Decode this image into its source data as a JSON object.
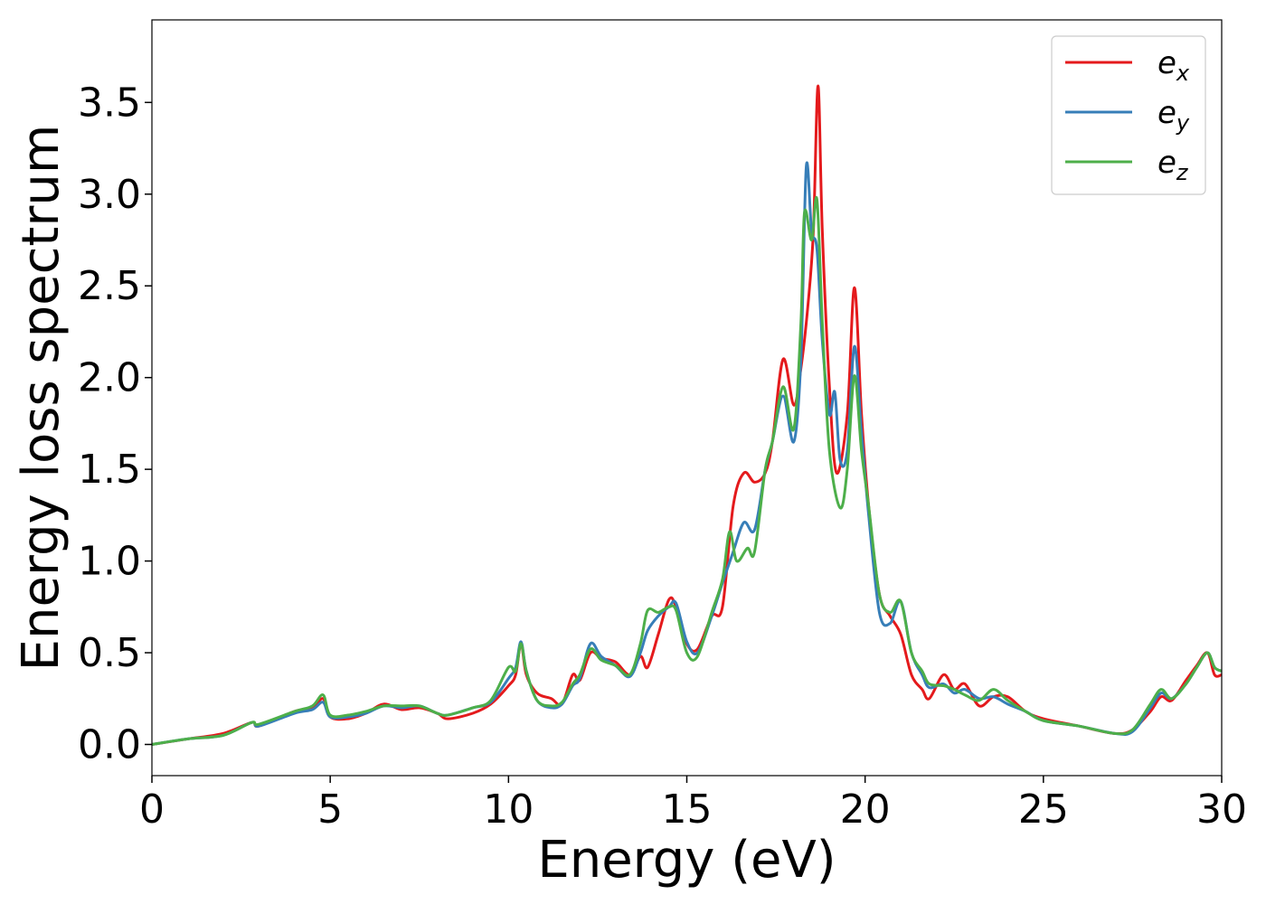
{
  "chart_data": {
    "type": "line",
    "title": "",
    "xlabel": "Energy (eV)",
    "ylabel": "Energy loss spectrum",
    "xlim": [
      0,
      30
    ],
    "ylim": [
      -0.17,
      3.95
    ],
    "xticks": [
      0,
      5,
      10,
      15,
      20,
      25,
      30
    ],
    "xtick_labels": [
      "0",
      "5",
      "10",
      "15",
      "20",
      "25",
      "30"
    ],
    "yticks": [
      0.0,
      0.5,
      1.0,
      1.5,
      2.0,
      2.5,
      3.0,
      3.5
    ],
    "ytick_labels": [
      "0.0",
      "0.5",
      "1.0",
      "1.5",
      "2.0",
      "2.5",
      "3.0",
      "3.5"
    ],
    "grid": false,
    "legend_position": "top-right",
    "series": [
      {
        "name": "e_x",
        "base": "e",
        "sub": "x",
        "color": "#e41a1c",
        "points": [
          [
            0,
            0.0
          ],
          [
            1,
            0.03
          ],
          [
            2,
            0.06
          ],
          [
            2.8,
            0.12
          ],
          [
            3,
            0.1
          ],
          [
            4,
            0.18
          ],
          [
            4.5,
            0.2
          ],
          [
            4.8,
            0.25
          ],
          [
            5,
            0.15
          ],
          [
            5.5,
            0.14
          ],
          [
            6,
            0.17
          ],
          [
            6.5,
            0.22
          ],
          [
            7,
            0.19
          ],
          [
            7.5,
            0.2
          ],
          [
            8,
            0.17
          ],
          [
            8.3,
            0.14
          ],
          [
            9,
            0.17
          ],
          [
            9.5,
            0.22
          ],
          [
            10,
            0.32
          ],
          [
            10.2,
            0.38
          ],
          [
            10.35,
            0.55
          ],
          [
            10.5,
            0.38
          ],
          [
            10.8,
            0.28
          ],
          [
            11.2,
            0.25
          ],
          [
            11.5,
            0.22
          ],
          [
            11.8,
            0.38
          ],
          [
            12,
            0.35
          ],
          [
            12.3,
            0.5
          ],
          [
            12.6,
            0.47
          ],
          [
            13,
            0.45
          ],
          [
            13.4,
            0.38
          ],
          [
            13.7,
            0.48
          ],
          [
            13.9,
            0.42
          ],
          [
            14.2,
            0.6
          ],
          [
            14.5,
            0.79
          ],
          [
            14.7,
            0.75
          ],
          [
            15,
            0.55
          ],
          [
            15.3,
            0.52
          ],
          [
            15.7,
            0.7
          ],
          [
            16,
            0.75
          ],
          [
            16.3,
            1.3
          ],
          [
            16.6,
            1.48
          ],
          [
            16.9,
            1.43
          ],
          [
            17.2,
            1.48
          ],
          [
            17.4,
            1.65
          ],
          [
            17.7,
            2.1
          ],
          [
            18,
            1.85
          ],
          [
            18.2,
            2.05
          ],
          [
            18.4,
            2.4
          ],
          [
            18.55,
            2.8
          ],
          [
            18.68,
            3.59
          ],
          [
            18.8,
            2.8
          ],
          [
            19,
            1.95
          ],
          [
            19.2,
            1.48
          ],
          [
            19.5,
            1.8
          ],
          [
            19.7,
            2.49
          ],
          [
            19.9,
            1.8
          ],
          [
            20.1,
            1.3
          ],
          [
            20.4,
            0.82
          ],
          [
            20.7,
            0.7
          ],
          [
            21,
            0.6
          ],
          [
            21.3,
            0.38
          ],
          [
            21.6,
            0.3
          ],
          [
            21.8,
            0.25
          ],
          [
            22.2,
            0.38
          ],
          [
            22.5,
            0.3
          ],
          [
            22.8,
            0.33
          ],
          [
            23.2,
            0.21
          ],
          [
            23.6,
            0.26
          ],
          [
            24,
            0.26
          ],
          [
            24.5,
            0.18
          ],
          [
            25,
            0.14
          ],
          [
            26,
            0.1
          ],
          [
            27,
            0.06
          ],
          [
            27.5,
            0.08
          ],
          [
            28,
            0.18
          ],
          [
            28.3,
            0.26
          ],
          [
            28.6,
            0.24
          ],
          [
            29,
            0.35
          ],
          [
            29.3,
            0.43
          ],
          [
            29.6,
            0.5
          ],
          [
            29.8,
            0.38
          ],
          [
            30,
            0.38
          ]
        ]
      },
      {
        "name": "e_y",
        "base": "e",
        "sub": "y",
        "color": "#377eb8",
        "points": [
          [
            0,
            0.0
          ],
          [
            1,
            0.03
          ],
          [
            2,
            0.05
          ],
          [
            2.8,
            0.12
          ],
          [
            3,
            0.1
          ],
          [
            4,
            0.17
          ],
          [
            4.5,
            0.19
          ],
          [
            4.8,
            0.23
          ],
          [
            5,
            0.15
          ],
          [
            5.5,
            0.15
          ],
          [
            6,
            0.17
          ],
          [
            6.5,
            0.21
          ],
          [
            7,
            0.2
          ],
          [
            7.5,
            0.21
          ],
          [
            8,
            0.17
          ],
          [
            8.3,
            0.16
          ],
          [
            9,
            0.2
          ],
          [
            9.5,
            0.23
          ],
          [
            10,
            0.36
          ],
          [
            10.2,
            0.42
          ],
          [
            10.35,
            0.56
          ],
          [
            10.5,
            0.4
          ],
          [
            10.8,
            0.24
          ],
          [
            11.2,
            0.2
          ],
          [
            11.5,
            0.22
          ],
          [
            11.8,
            0.32
          ],
          [
            12,
            0.36
          ],
          [
            12.3,
            0.55
          ],
          [
            12.6,
            0.48
          ],
          [
            13,
            0.43
          ],
          [
            13.4,
            0.37
          ],
          [
            13.7,
            0.5
          ],
          [
            13.9,
            0.62
          ],
          [
            14.2,
            0.7
          ],
          [
            14.5,
            0.75
          ],
          [
            14.7,
            0.77
          ],
          [
            15,
            0.56
          ],
          [
            15.3,
            0.5
          ],
          [
            15.7,
            0.7
          ],
          [
            16,
            0.88
          ],
          [
            16.3,
            1.05
          ],
          [
            16.6,
            1.21
          ],
          [
            16.9,
            1.17
          ],
          [
            17.2,
            1.5
          ],
          [
            17.4,
            1.65
          ],
          [
            17.7,
            1.9
          ],
          [
            18,
            1.65
          ],
          [
            18.2,
            2.1
          ],
          [
            18.35,
            3.15
          ],
          [
            18.5,
            2.8
          ],
          [
            18.65,
            2.7
          ],
          [
            18.8,
            2.2
          ],
          [
            19,
            1.8
          ],
          [
            19.15,
            1.92
          ],
          [
            19.3,
            1.55
          ],
          [
            19.5,
            1.6
          ],
          [
            19.7,
            2.17
          ],
          [
            19.9,
            1.7
          ],
          [
            20.1,
            1.25
          ],
          [
            20.4,
            0.72
          ],
          [
            20.7,
            0.66
          ],
          [
            21,
            0.78
          ],
          [
            21.3,
            0.5
          ],
          [
            21.6,
            0.38
          ],
          [
            21.8,
            0.31
          ],
          [
            22.2,
            0.33
          ],
          [
            22.5,
            0.28
          ],
          [
            22.8,
            0.3
          ],
          [
            23.2,
            0.25
          ],
          [
            23.6,
            0.26
          ],
          [
            24,
            0.22
          ],
          [
            24.5,
            0.18
          ],
          [
            25,
            0.13
          ],
          [
            26,
            0.1
          ],
          [
            27,
            0.06
          ],
          [
            27.5,
            0.07
          ],
          [
            28,
            0.2
          ],
          [
            28.3,
            0.28
          ],
          [
            28.6,
            0.25
          ],
          [
            29,
            0.33
          ],
          [
            29.3,
            0.42
          ],
          [
            29.6,
            0.5
          ],
          [
            29.8,
            0.42
          ],
          [
            30,
            0.4
          ]
        ]
      },
      {
        "name": "e_z",
        "base": "e",
        "sub": "z",
        "color": "#4daf4a",
        "points": [
          [
            0,
            0.0
          ],
          [
            1,
            0.03
          ],
          [
            2,
            0.05
          ],
          [
            2.8,
            0.12
          ],
          [
            3,
            0.11
          ],
          [
            4,
            0.18
          ],
          [
            4.5,
            0.21
          ],
          [
            4.8,
            0.27
          ],
          [
            5,
            0.16
          ],
          [
            5.5,
            0.16
          ],
          [
            6,
            0.18
          ],
          [
            6.5,
            0.21
          ],
          [
            7,
            0.21
          ],
          [
            7.5,
            0.21
          ],
          [
            8,
            0.17
          ],
          [
            8.3,
            0.16
          ],
          [
            9,
            0.2
          ],
          [
            9.5,
            0.24
          ],
          [
            10,
            0.42
          ],
          [
            10.2,
            0.4
          ],
          [
            10.35,
            0.55
          ],
          [
            10.5,
            0.4
          ],
          [
            10.8,
            0.24
          ],
          [
            11.2,
            0.21
          ],
          [
            11.5,
            0.23
          ],
          [
            11.8,
            0.33
          ],
          [
            12,
            0.38
          ],
          [
            12.3,
            0.52
          ],
          [
            12.6,
            0.46
          ],
          [
            13,
            0.43
          ],
          [
            13.4,
            0.38
          ],
          [
            13.7,
            0.55
          ],
          [
            13.9,
            0.73
          ],
          [
            14.2,
            0.72
          ],
          [
            14.5,
            0.75
          ],
          [
            14.7,
            0.73
          ],
          [
            15,
            0.5
          ],
          [
            15.3,
            0.48
          ],
          [
            15.7,
            0.72
          ],
          [
            16,
            0.9
          ],
          [
            16.2,
            1.16
          ],
          [
            16.4,
            1.0
          ],
          [
            16.7,
            1.07
          ],
          [
            16.9,
            1.05
          ],
          [
            17.2,
            1.5
          ],
          [
            17.4,
            1.65
          ],
          [
            17.7,
            1.95
          ],
          [
            18,
            1.72
          ],
          [
            18.2,
            2.3
          ],
          [
            18.3,
            2.9
          ],
          [
            18.5,
            2.75
          ],
          [
            18.65,
            2.97
          ],
          [
            18.8,
            2.3
          ],
          [
            19,
            1.6
          ],
          [
            19.3,
            1.29
          ],
          [
            19.5,
            1.5
          ],
          [
            19.7,
            2.01
          ],
          [
            19.9,
            1.6
          ],
          [
            20.1,
            1.3
          ],
          [
            20.4,
            0.82
          ],
          [
            20.7,
            0.72
          ],
          [
            21,
            0.78
          ],
          [
            21.3,
            0.5
          ],
          [
            21.6,
            0.4
          ],
          [
            21.8,
            0.33
          ],
          [
            22.2,
            0.32
          ],
          [
            22.5,
            0.3
          ],
          [
            22.8,
            0.27
          ],
          [
            23.2,
            0.24
          ],
          [
            23.6,
            0.3
          ],
          [
            24,
            0.24
          ],
          [
            24.5,
            0.18
          ],
          [
            25,
            0.13
          ],
          [
            26,
            0.1
          ],
          [
            27,
            0.06
          ],
          [
            27.5,
            0.08
          ],
          [
            28,
            0.22
          ],
          [
            28.3,
            0.3
          ],
          [
            28.6,
            0.25
          ],
          [
            29,
            0.33
          ],
          [
            29.3,
            0.42
          ],
          [
            29.6,
            0.5
          ],
          [
            29.8,
            0.42
          ],
          [
            30,
            0.4
          ]
        ]
      }
    ]
  }
}
